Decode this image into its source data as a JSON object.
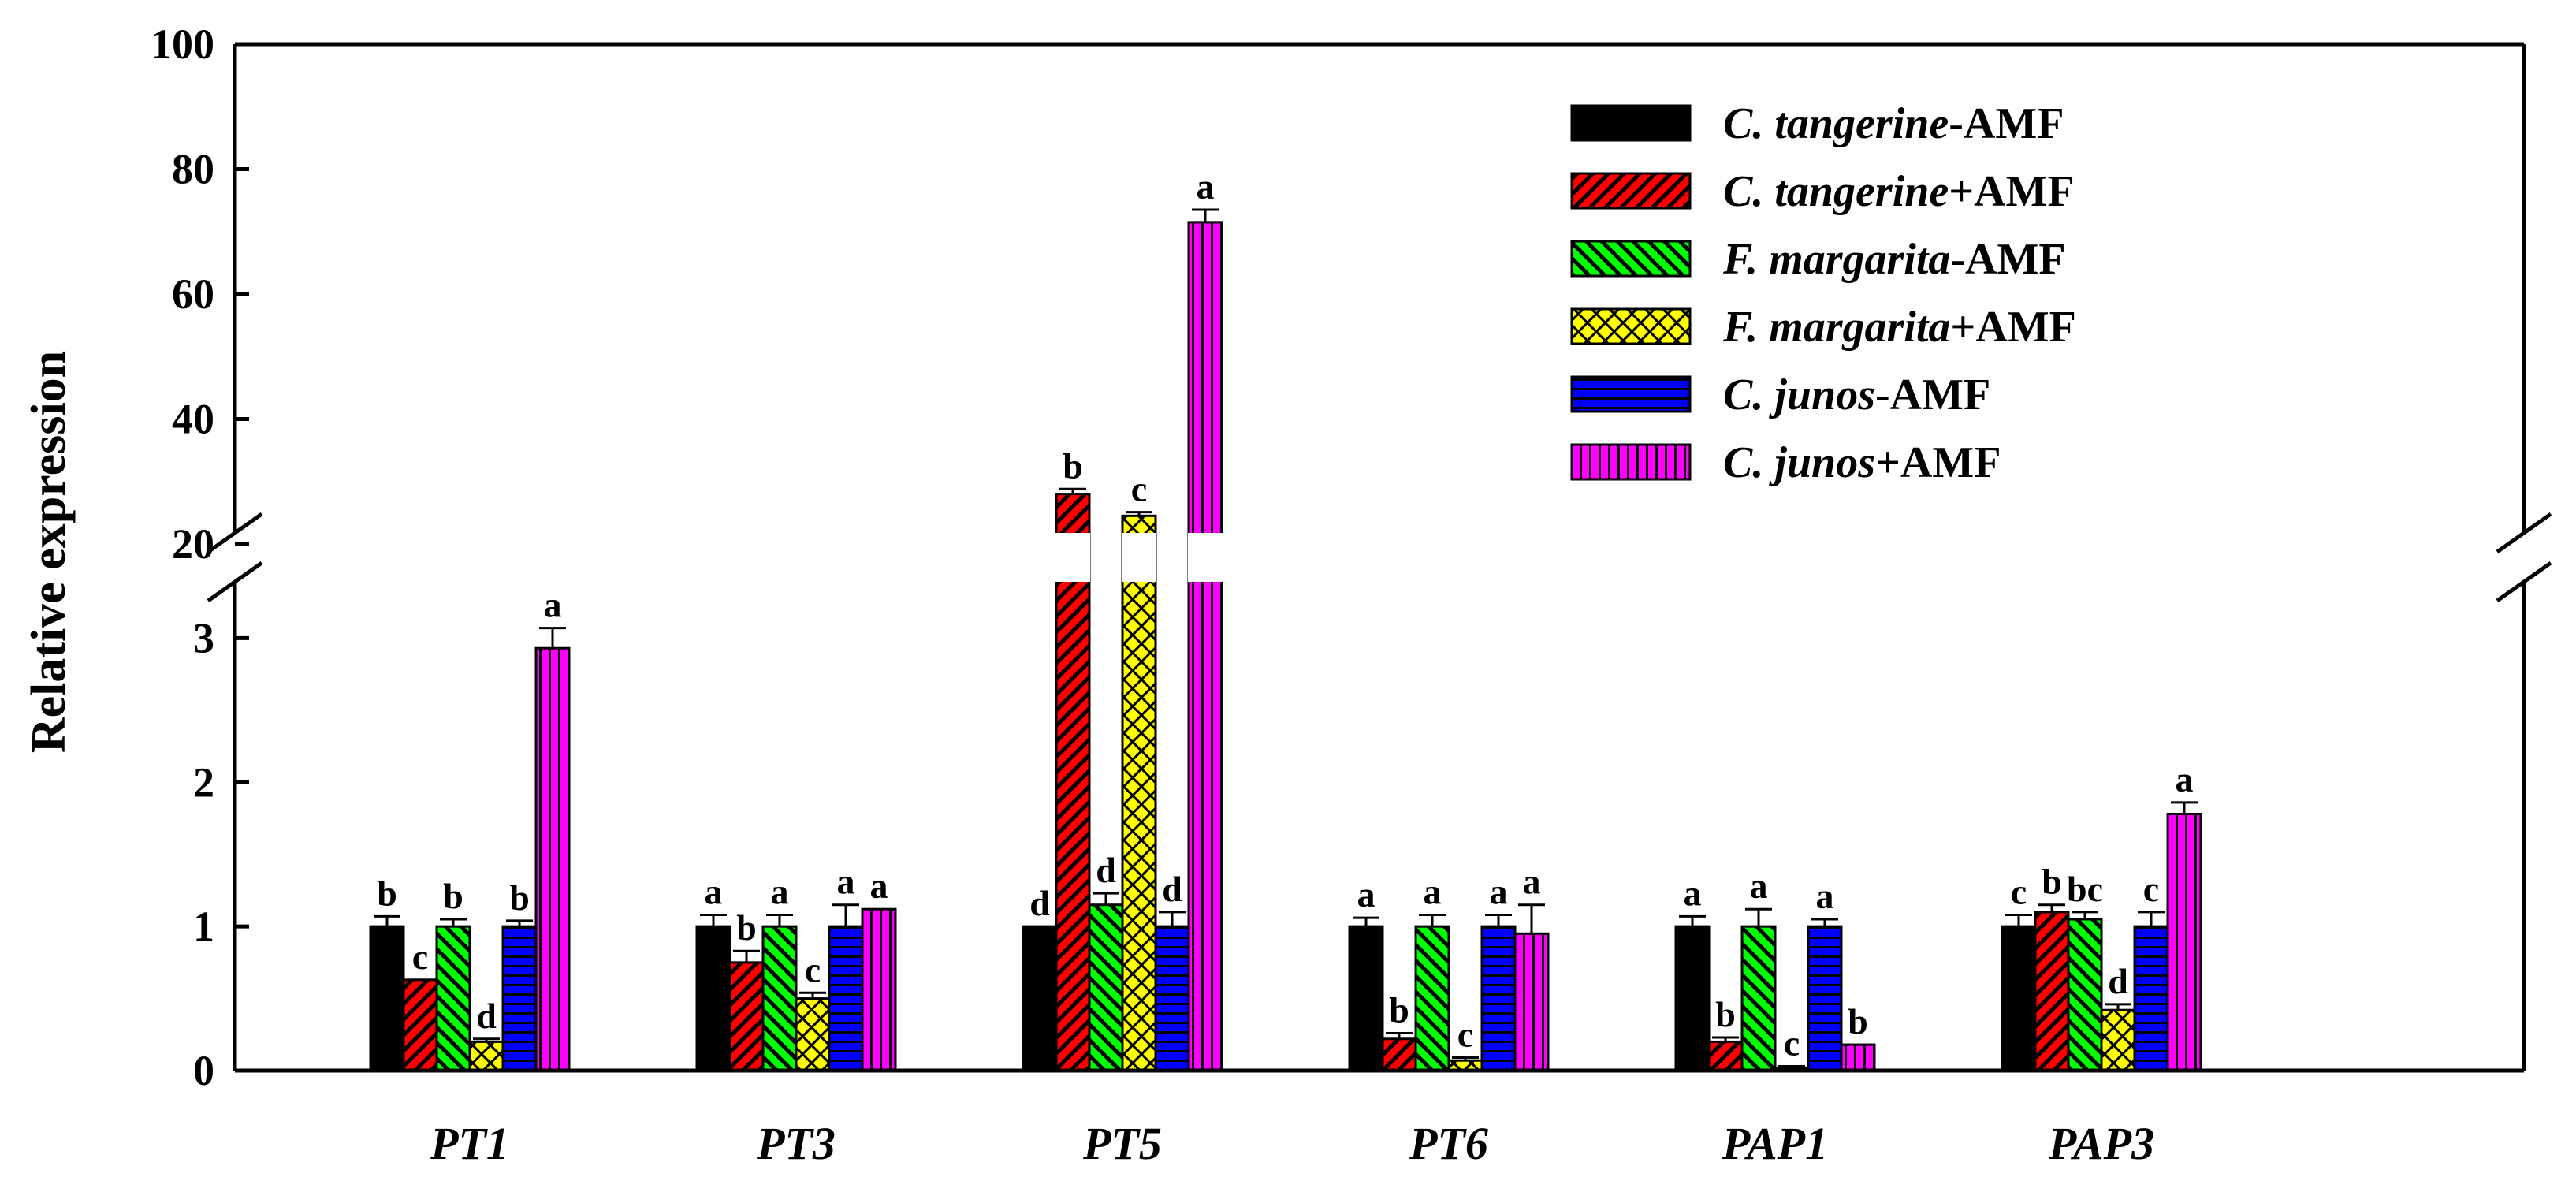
{
  "chart_data": {
    "type": "bar",
    "title": "",
    "xlabel": "",
    "ylabel": "Relative expression",
    "categories": [
      "PT1",
      "PT3",
      "PT5",
      "PT6",
      "PAP1",
      "PAP3"
    ],
    "axis_break": {
      "lower_range": [
        0,
        3.5
      ],
      "upper_range": [
        20,
        100
      ]
    },
    "lower_ticks": [
      "0",
      "1",
      "2",
      "3"
    ],
    "upper_ticks": [
      "20",
      "40",
      "60",
      "80",
      "100"
    ],
    "series": [
      {
        "name": "C. tangerine-AMF",
        "species": "C. tangerine",
        "treatment": "-AMF",
        "color": "#000000",
        "pattern": "solid",
        "values": [
          1.0,
          1.0,
          1.0,
          1.0,
          1.0,
          1.0
        ],
        "errors": [
          0.07,
          0.08,
          0.0,
          0.06,
          0.07,
          0.08
        ],
        "labels": [
          "b",
          "a",
          "d",
          "a",
          "a",
          "c"
        ]
      },
      {
        "name": "C. tangerine+AMF",
        "species": "C. tangerine",
        "treatment": "+AMF",
        "color": "#ff0000",
        "pattern": "diag",
        "values": [
          0.63,
          0.75,
          28.0,
          0.22,
          0.2,
          1.1
        ],
        "errors": [
          0.0,
          0.08,
          0.8,
          0.04,
          0.03,
          0.05
        ],
        "labels": [
          "c",
          "b",
          "b",
          "b",
          "b",
          "b"
        ]
      },
      {
        "name": "F. margarita-AMF",
        "species": "F. margarita",
        "treatment": "-AMF",
        "color": "#00ff00",
        "pattern": "diag-rev",
        "values": [
          1.0,
          1.0,
          1.15,
          1.0,
          1.0,
          1.05
        ],
        "errors": [
          0.05,
          0.08,
          0.08,
          0.08,
          0.12,
          0.05
        ],
        "labels": [
          "b",
          "a",
          "d",
          "a",
          "a",
          "bc"
        ]
      },
      {
        "name": "F. margarita+AMF",
        "species": "F. margarita",
        "treatment": "+AMF",
        "color": "#ffff00",
        "pattern": "cross",
        "values": [
          0.2,
          0.5,
          24.5,
          0.07,
          0.02,
          0.42
        ],
        "errors": [
          0.02,
          0.04,
          0.6,
          0.02,
          0.01,
          0.04
        ],
        "labels": [
          "d",
          "c",
          "c",
          "c",
          "c",
          "d"
        ]
      },
      {
        "name": "C. junos-AMF",
        "species": "C. junos",
        "treatment": "-AMF",
        "color": "#0000ff",
        "pattern": "horiz",
        "values": [
          1.0,
          1.0,
          1.0,
          1.0,
          1.0,
          1.0
        ],
        "errors": [
          0.04,
          0.15,
          0.1,
          0.08,
          0.05,
          0.1
        ],
        "labels": [
          "b",
          "a",
          "d",
          "a",
          "a",
          "c"
        ]
      },
      {
        "name": "C. junos+AMF",
        "species": "C. junos",
        "treatment": "+AMF",
        "color": "#ff00ff",
        "pattern": "vert",
        "values": [
          2.93,
          1.12,
          71.5,
          0.95,
          0.18,
          1.78
        ],
        "errors": [
          0.14,
          0.0,
          2.0,
          0.2,
          0.0,
          0.08
        ],
        "labels": [
          "a",
          "a",
          "a",
          "a",
          "b",
          "a"
        ]
      }
    ]
  }
}
